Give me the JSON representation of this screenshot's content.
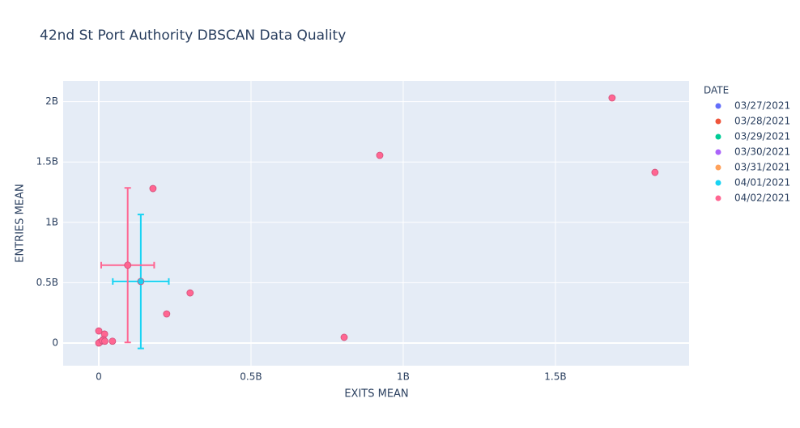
{
  "chart_data": {
    "type": "scatter",
    "title": "42nd St Port Authority DBSCAN Data Quality",
    "x_label": "EXITS MEAN",
    "y_label": "ENTRIES MEAN",
    "legend_title": "DATE",
    "xlim": [
      -117000000,
      1939000000
    ],
    "ylim": [
      -188000000,
      2172000000
    ],
    "xticks": [
      0,
      {
        "value": 500000000,
        "label": "0.5B"
      },
      {
        "value": 1000000000,
        "label": "1B"
      },
      {
        "value": 1500000000,
        "label": "1.5B"
      }
    ],
    "yticks": [
      0,
      {
        "value": 500000000,
        "label": "0.5B"
      },
      {
        "value": 1000000000,
        "label": "1B"
      },
      {
        "value": 1500000000,
        "label": "1.5B"
      },
      {
        "value": 2000000000,
        "label": "2B"
      }
    ],
    "grid": true,
    "series": [
      {
        "name": "03/27/2021",
        "color": "#636efa",
        "x": [],
        "y": [],
        "error_x": [],
        "error_y": []
      },
      {
        "name": "03/28/2021",
        "color": "#EF553B",
        "x": [],
        "y": [],
        "error_x": [],
        "error_y": []
      },
      {
        "name": "03/29/2021",
        "color": "#00cc96",
        "x": [],
        "y": [],
        "error_x": [],
        "error_y": []
      },
      {
        "name": "03/30/2021",
        "color": "#ab63fa",
        "x": [],
        "y": [],
        "error_x": [],
        "error_y": []
      },
      {
        "name": "03/31/2021",
        "color": "#FFA15A",
        "x": [],
        "y": [],
        "error_x": [],
        "error_y": []
      },
      {
        "name": "04/01/2021",
        "color": "#19d3f3",
        "x": [
          138000000
        ],
        "y": [
          510000000
        ],
        "error_x": [
          92000000
        ],
        "error_y": [
          555000000
        ]
      },
      {
        "name": "04/02/2021",
        "color": "#FF6692",
        "x": [
          95000000,
          1686000000,
          1827000000,
          923000000,
          178000000,
          300000000,
          223000000,
          806000000,
          45000000,
          0,
          19000000,
          15000000,
          5000000,
          0,
          12000000,
          20000000
        ],
        "y": [
          645000000,
          2031000000,
          1414000000,
          1555000000,
          1280000000,
          415000000,
          241000000,
          47000000,
          15000000,
          100000000,
          74000000,
          30000000,
          10000000,
          0,
          20000000,
          15000000
        ],
        "error_x": [
          87000000,
          null,
          null,
          null,
          null,
          null,
          null,
          null,
          null,
          null,
          null,
          null,
          null,
          null,
          null,
          null
        ],
        "error_y": [
          640000000,
          null,
          null,
          null,
          null,
          null,
          null,
          null,
          null,
          null,
          null,
          null,
          null,
          null,
          null,
          null
        ]
      }
    ]
  }
}
